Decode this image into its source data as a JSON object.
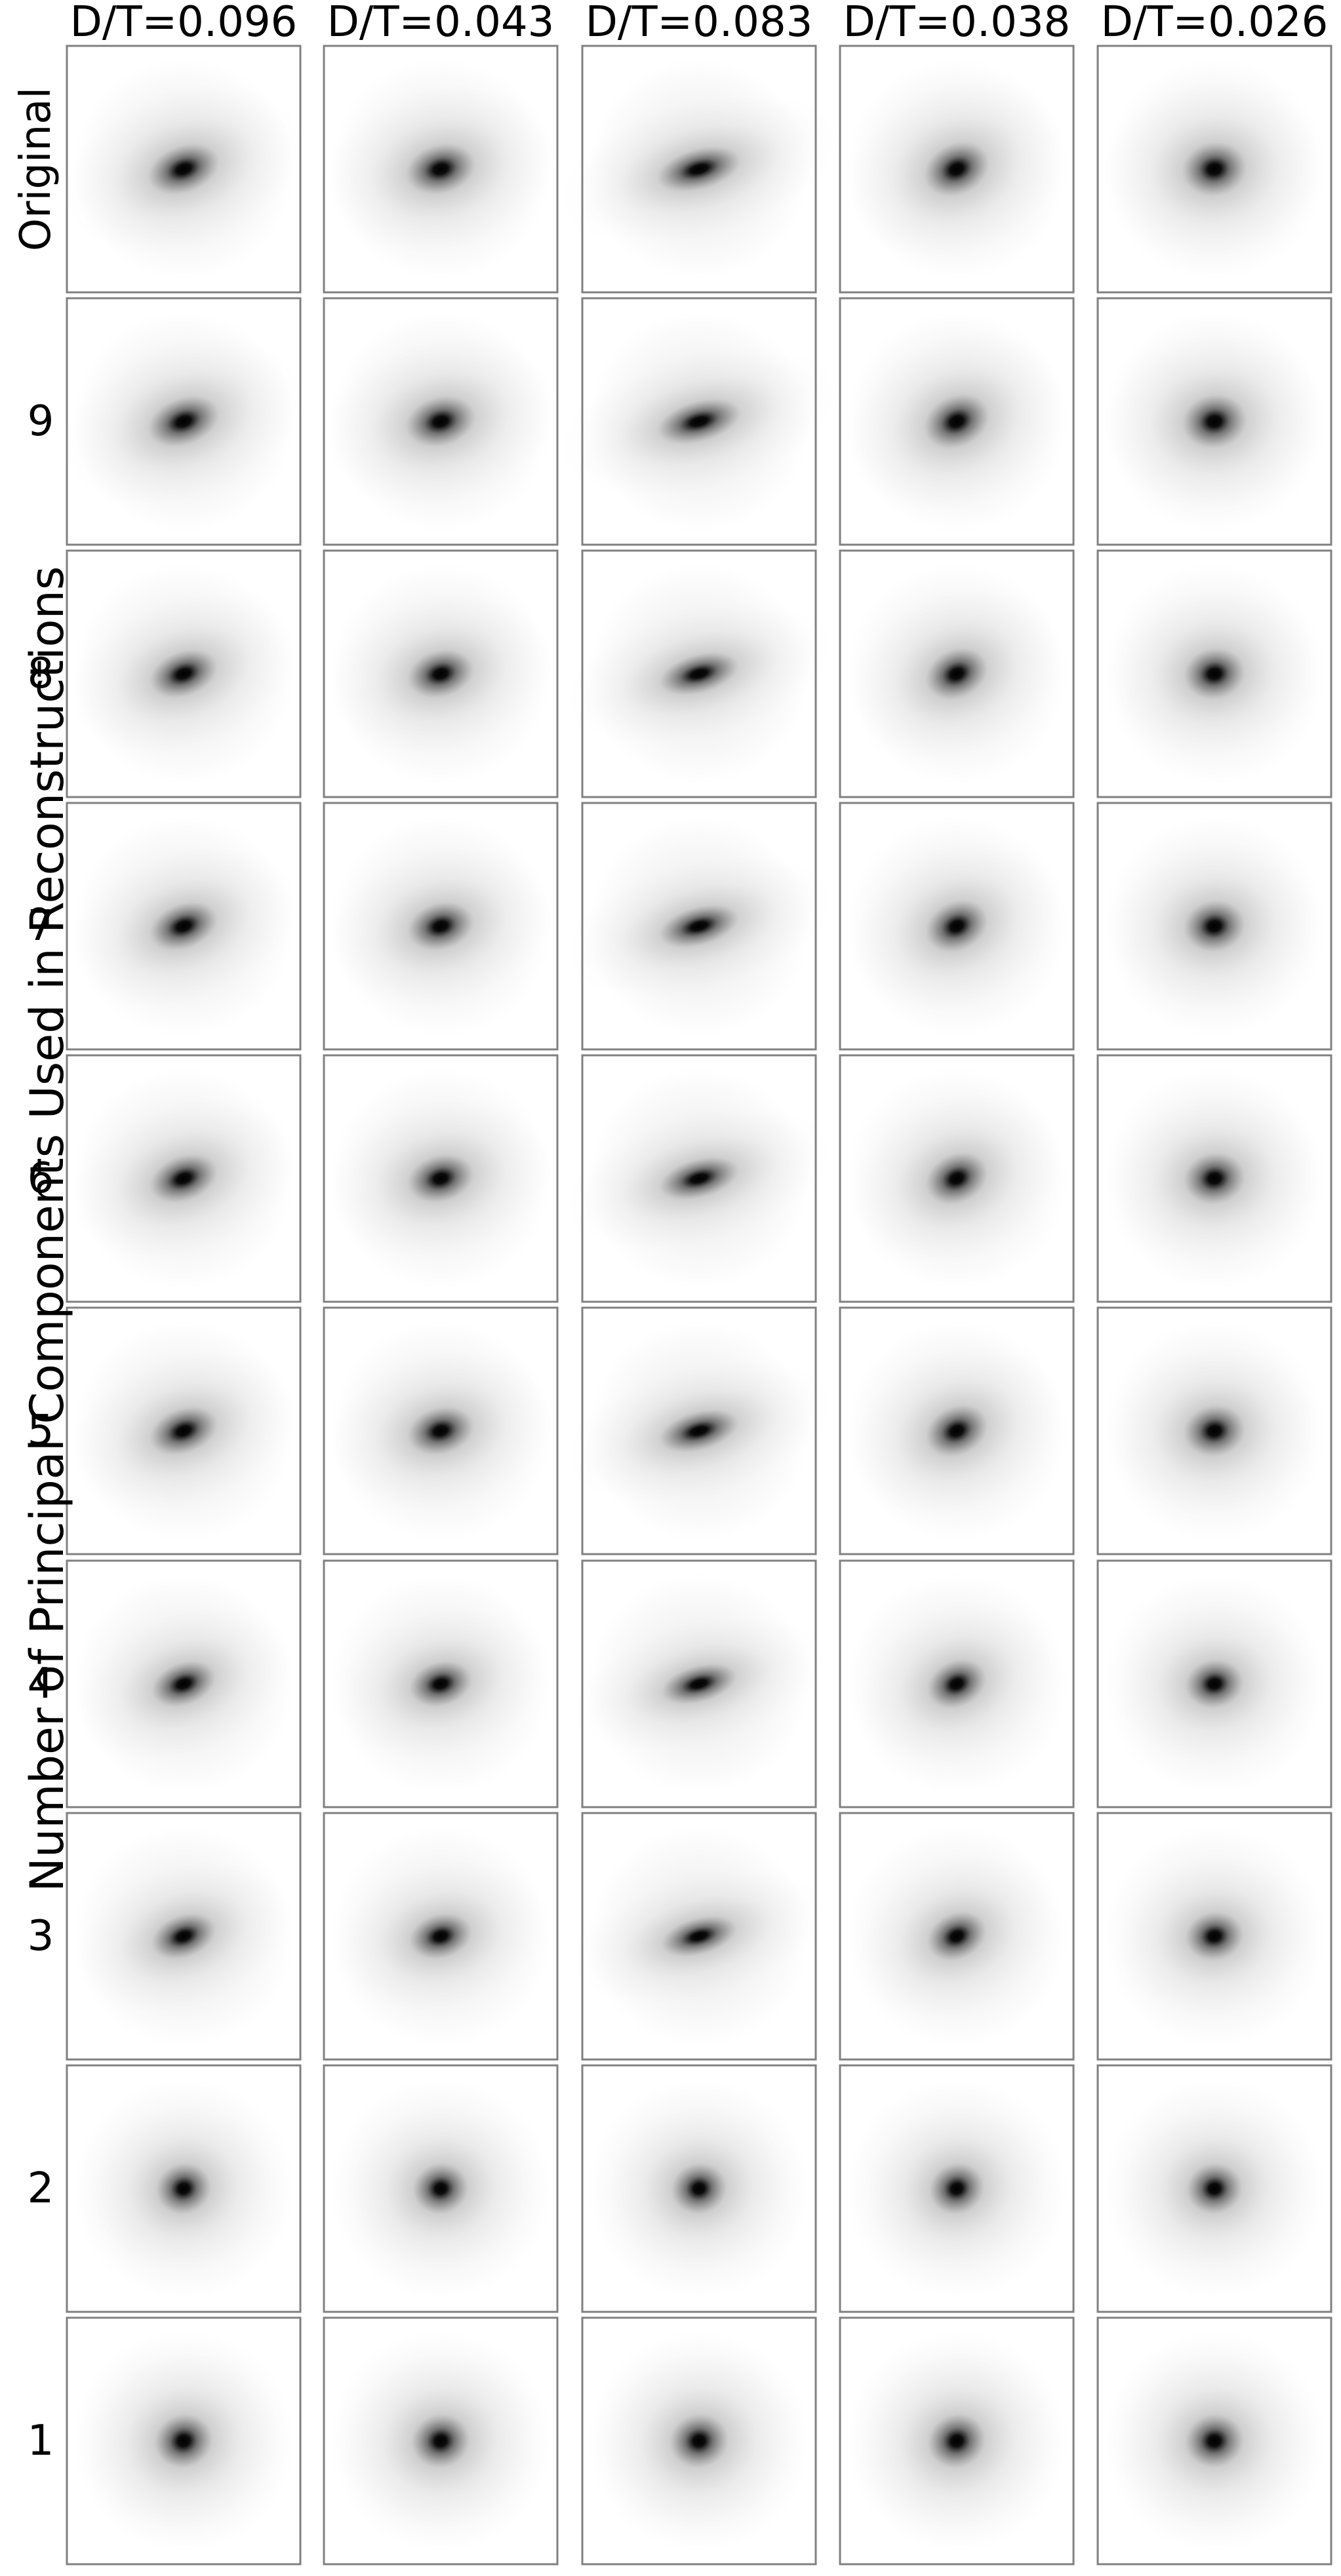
{
  "chart_data": {
    "type": "image-grid",
    "columns": [
      "D/T=0.096",
      "D/T=0.043",
      "D/T=0.083",
      "D/T=0.038",
      "D/T=0.026"
    ],
    "rows": [
      "Original",
      "9",
      "8",
      "7",
      "6",
      "5",
      "4",
      "3",
      "2",
      "1"
    ],
    "ylabel": "Number of Principal Components Used in Reconstructions",
    "grid": false,
    "colors": {
      "panel_border": "#808080",
      "background": "#ffffff",
      "galaxy_core": "#000000"
    },
    "panel_content": "galaxy image (grayscale, black centre fading to white)"
  }
}
